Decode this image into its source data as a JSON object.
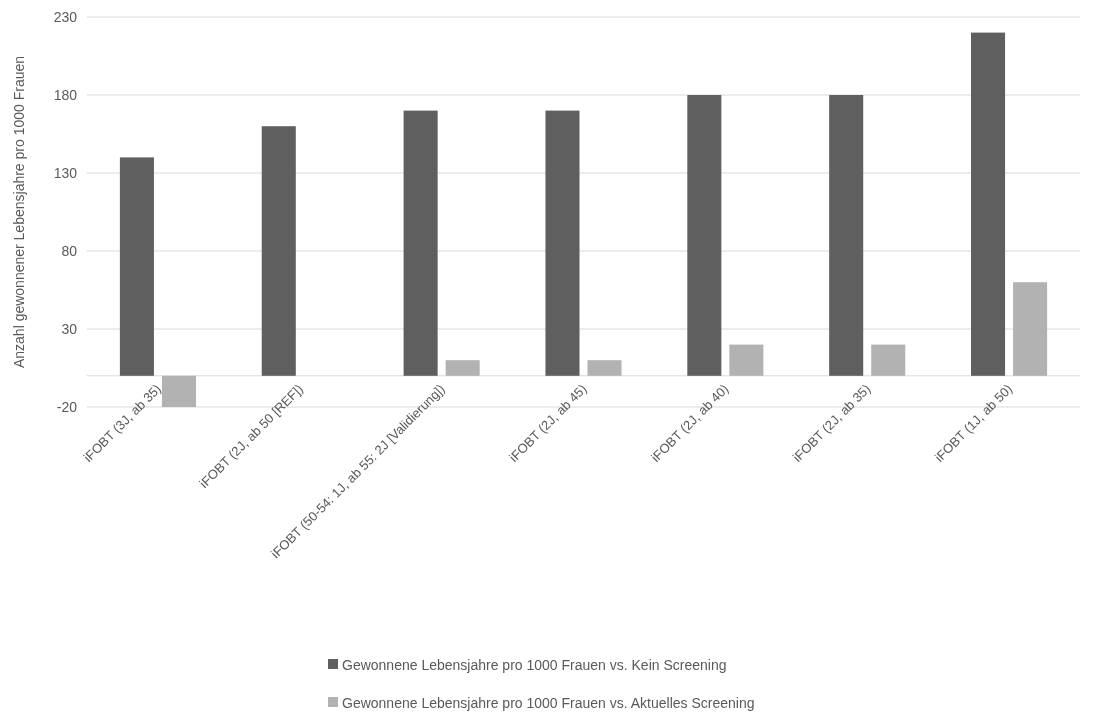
{
  "chart_data": {
    "type": "bar",
    "ylabel": "Anzahl gewonnener  Lebensjahre pro 1000 Frauen",
    "categories": [
      "iFOBT (3J, ab 35)",
      "iFOBT (2J, ab 50 [REF])",
      "iFOBT (50-54: 1J, ab 55: 2J [Validierung])",
      "iFOBT (2J, ab 45)",
      "iFOBT (2J, ab 40)",
      "iFOBT (2J, ab 35)",
      "iFOBT (1J, ab 50)"
    ],
    "series": [
      {
        "name": "Gewonnene Lebensjahre pro 1000 Frauen vs. Kein Screening",
        "color": "#5f5f5f",
        "values": [
          140,
          160,
          170,
          170,
          180,
          180,
          220
        ]
      },
      {
        "name": "Gewonnene Lebensjahre pro 1000 Frauen vs. Aktuelles Screening",
        "color": "#b2b2b2",
        "values": [
          -20,
          0,
          10,
          10,
          20,
          20,
          60
        ]
      }
    ],
    "ylim": [
      -20,
      230
    ],
    "yticks": [
      -20,
      30,
      80,
      130,
      180,
      230
    ],
    "grid": "y",
    "legend": "bottom"
  }
}
